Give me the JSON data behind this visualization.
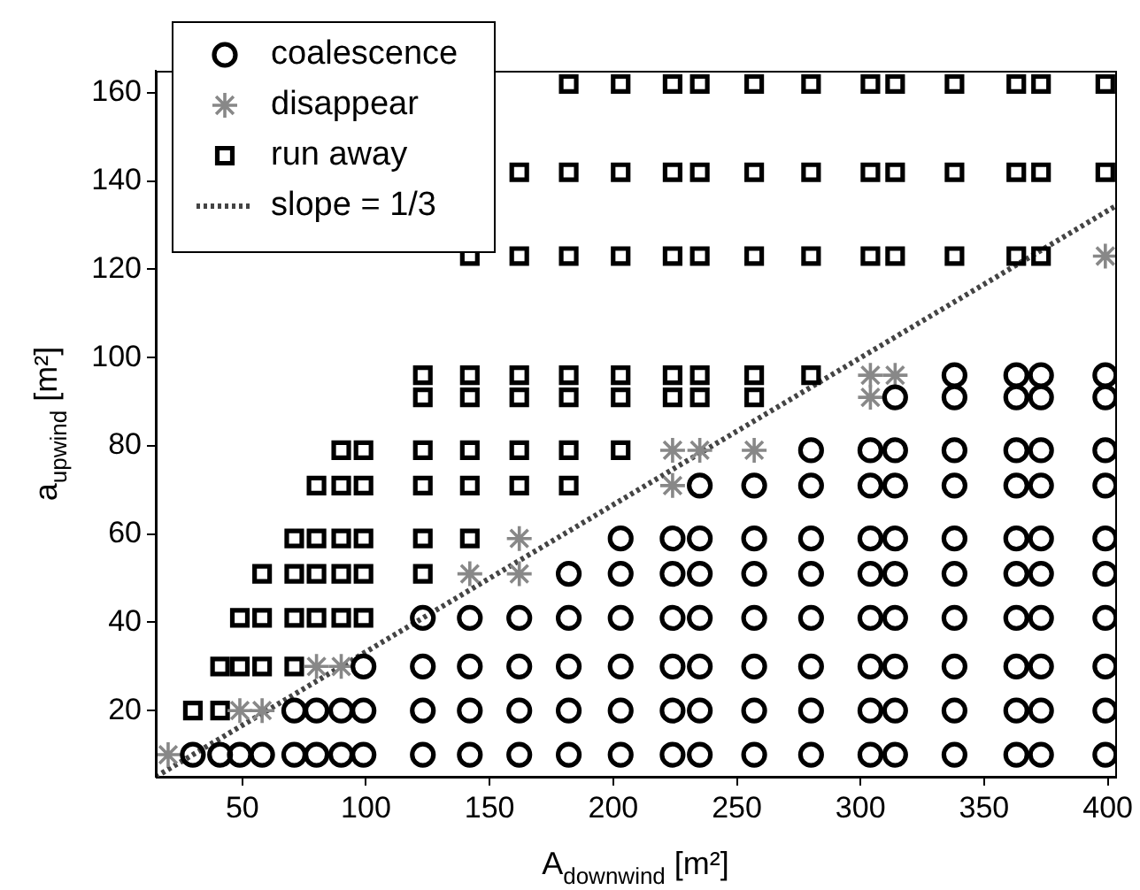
{
  "chart_data": {
    "type": "scatter",
    "xlabel": "A$_{downwind}$ [m²]",
    "ylabel": "a$_{upwind}$ [m²]",
    "xlim": [
      15,
      403
    ],
    "ylim": [
      5,
      165
    ],
    "xticks": [
      50,
      100,
      150,
      200,
      250,
      300,
      350,
      400
    ],
    "yticks": [
      20,
      40,
      60,
      80,
      100,
      120,
      140,
      160
    ],
    "grid": false,
    "legend": "top left",
    "series": [
      {
        "name": "coalescence",
        "marker": "circle",
        "color": "#000000",
        "x": [
          30,
          41,
          49,
          58,
          71,
          71,
          80,
          80,
          90,
          90,
          99,
          99,
          99,
          123,
          123,
          123,
          123,
          142,
          142,
          142,
          142,
          162,
          162,
          162,
          162,
          182,
          182,
          182,
          182,
          182,
          203,
          203,
          203,
          203,
          203,
          203,
          224,
          224,
          224,
          224,
          224,
          224,
          235,
          235,
          235,
          235,
          235,
          235,
          235,
          257,
          257,
          257,
          257,
          257,
          257,
          257,
          280,
          280,
          280,
          280,
          280,
          280,
          280,
          280,
          304,
          304,
          304,
          304,
          304,
          304,
          304,
          304,
          314,
          314,
          314,
          314,
          314,
          314,
          314,
          314,
          314,
          338,
          338,
          338,
          338,
          338,
          338,
          338,
          338,
          338,
          338,
          363,
          363,
          363,
          363,
          363,
          363,
          363,
          363,
          363,
          363,
          373,
          373,
          373,
          373,
          373,
          373,
          373,
          373,
          373,
          373,
          399,
          399,
          399,
          399,
          399,
          399,
          399,
          399,
          399,
          399
        ],
        "values": [
          10,
          10,
          10,
          10,
          10,
          20,
          10,
          20,
          10,
          20,
          10,
          20,
          30,
          10,
          20,
          30,
          41,
          10,
          20,
          30,
          41,
          10,
          20,
          30,
          41,
          10,
          20,
          30,
          41,
          51,
          10,
          20,
          30,
          41,
          51,
          59,
          10,
          20,
          30,
          41,
          51,
          59,
          10,
          20,
          30,
          41,
          51,
          59,
          71,
          10,
          20,
          30,
          41,
          51,
          59,
          71,
          10,
          20,
          30,
          41,
          51,
          59,
          71,
          79,
          10,
          20,
          30,
          41,
          51,
          59,
          71,
          79,
          10,
          20,
          30,
          41,
          51,
          59,
          71,
          79,
          91,
          10,
          20,
          30,
          41,
          51,
          59,
          71,
          79,
          91,
          96,
          10,
          20,
          30,
          41,
          51,
          59,
          71,
          79,
          91,
          96,
          10,
          20,
          30,
          41,
          51,
          59,
          71,
          79,
          91,
          96,
          10,
          20,
          30,
          41,
          51,
          59,
          71,
          79,
          91,
          96
        ]
      },
      {
        "name": "disappear",
        "marker": "cross",
        "color": "#888888",
        "x": [
          20,
          49,
          58,
          80,
          90,
          142,
          162,
          162,
          224,
          224,
          235,
          257,
          304,
          304,
          314,
          399
        ],
        "values": [
          10,
          20,
          20,
          30,
          30,
          51,
          51,
          59,
          71,
          79,
          79,
          79,
          91,
          96,
          96,
          123
        ]
      },
      {
        "name": "run away",
        "marker": "square",
        "color": "#000000",
        "x": [
          30,
          41,
          41,
          49,
          58,
          71,
          49,
          58,
          71,
          80,
          90,
          99,
          58,
          71,
          80,
          90,
          99,
          71,
          80,
          90,
          99,
          80,
          90,
          99,
          90,
          99,
          123,
          123,
          123,
          123,
          123,
          123,
          142,
          142,
          142,
          142,
          142,
          142,
          162,
          162,
          162,
          162,
          162,
          162,
          182,
          182,
          182,
          182,
          182,
          182,
          182,
          203,
          203,
          203,
          203,
          203,
          203,
          224,
          224,
          224,
          224,
          224,
          235,
          235,
          235,
          235,
          235,
          257,
          257,
          257,
          257,
          257,
          280,
          280,
          280,
          280,
          304,
          304,
          304,
          314,
          314,
          314,
          338,
          338,
          338,
          363,
          363,
          363,
          373,
          373,
          373,
          399,
          399
        ],
        "values": [
          20,
          20,
          30,
          30,
          30,
          30,
          41,
          41,
          41,
          41,
          41,
          41,
          51,
          51,
          51,
          51,
          51,
          59,
          59,
          59,
          59,
          71,
          71,
          71,
          79,
          79,
          51,
          59,
          71,
          79,
          91,
          96,
          59,
          71,
          79,
          91,
          96,
          123,
          71,
          79,
          91,
          96,
          123,
          142,
          71,
          79,
          91,
          96,
          123,
          142,
          162,
          79,
          91,
          96,
          123,
          142,
          162,
          91,
          96,
          123,
          142,
          162,
          91,
          96,
          123,
          142,
          162,
          91,
          96,
          123,
          142,
          162,
          96,
          123,
          142,
          162,
          123,
          142,
          162,
          123,
          142,
          162,
          123,
          142,
          162,
          123,
          142,
          162,
          123,
          142,
          162,
          142,
          162
        ]
      },
      {
        "name": "slope = 1/3",
        "type": "line",
        "marker": "none",
        "line_style": "dotted",
        "color": "#444444",
        "x": [
          15,
          403
        ],
        "values": [
          5,
          134.3
        ]
      }
    ]
  }
}
